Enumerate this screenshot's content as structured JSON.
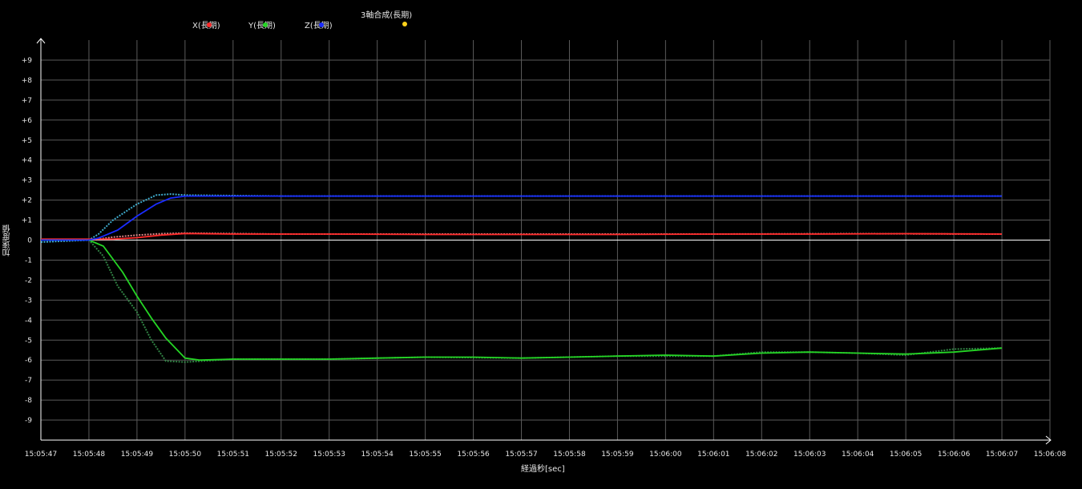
{
  "legend": {
    "x": "X(長期)",
    "y": "Y(長期)",
    "z": "Z(長期)",
    "total": "3軸合成(長期)"
  },
  "colors": {
    "background": "#000000",
    "grid": "#5a5a5a",
    "axis": "#ffffff",
    "x": "#ff2a2a",
    "y": "#25d525",
    "z": "#1a2cff",
    "total": "#ffd21a",
    "x_raw": "#ff9a9a",
    "y_raw": "#3a9a50",
    "z_raw": "#49c8ef"
  },
  "chart_data": {
    "type": "line",
    "xlabel": "経過秒[sec]",
    "ylabel": "加速度値",
    "xlim": [
      "15:05:47",
      "15:06:08"
    ],
    "ylim": [
      -10,
      10
    ],
    "grid": true,
    "legend_position": "top",
    "x_ticks": [
      "15:05:47",
      "15:05:48",
      "15:05:49",
      "15:05:50",
      "15:05:51",
      "15:05:52",
      "15:05:53",
      "15:05:54",
      "15:05:55",
      "15:05:56",
      "15:05:57",
      "15:05:58",
      "15:05:59",
      "15:06:00",
      "15:06:01",
      "15:06:02",
      "15:06:03",
      "15:06:04",
      "15:06:05",
      "15:06:06",
      "15:06:07",
      "15:06:08"
    ],
    "y_ticks": [
      "+9",
      "+8",
      "+7",
      "+6",
      "+5",
      "+4",
      "+3",
      "+2",
      "+1",
      "0",
      "-1",
      "-2",
      "-3",
      "-4",
      "-5",
      "-6",
      "-7",
      "-8",
      "-9"
    ],
    "series": [
      {
        "name": "X(長期)",
        "x": [
          "15:05:47",
          "15:05:48",
          "15:05:48.5",
          "15:05:49",
          "15:05:49.5",
          "15:05:50",
          "15:05:51",
          "15:05:53",
          "15:05:55",
          "15:05:57",
          "15:05:59",
          "15:06:01",
          "15:06:03",
          "15:06:05",
          "15:06:07"
        ],
        "values": [
          0.05,
          0.05,
          0.05,
          0.12,
          0.25,
          0.33,
          0.3,
          0.3,
          0.28,
          0.28,
          0.28,
          0.3,
          0.3,
          0.32,
          0.3
        ]
      },
      {
        "name": "Y(長期)",
        "x": [
          "15:05:47",
          "15:05:48",
          "15:05:48.3",
          "15:05:48.7",
          "15:05:49",
          "15:05:49.3",
          "15:05:49.6",
          "15:05:50",
          "15:05:50.3",
          "15:05:51",
          "15:05:52",
          "15:05:53",
          "15:05:54",
          "15:05:55",
          "15:05:56",
          "15:05:57",
          "15:05:58",
          "15:05:59",
          "15:06:00",
          "15:06:01",
          "15:06:02",
          "15:06:03",
          "15:06:04",
          "15:06:05",
          "15:06:06",
          "15:06:07"
        ],
        "values": [
          0.0,
          0.0,
          -0.3,
          -1.6,
          -2.8,
          -3.9,
          -4.9,
          -5.9,
          -6.0,
          -5.95,
          -5.95,
          -5.95,
          -5.9,
          -5.85,
          -5.85,
          -5.9,
          -5.85,
          -5.8,
          -5.75,
          -5.8,
          -5.65,
          -5.6,
          -5.65,
          -5.7,
          -5.6,
          -5.4
        ]
      },
      {
        "name": "Z(長期)",
        "x": [
          "15:05:47",
          "15:05:48",
          "15:05:48.2",
          "15:05:48.6",
          "15:05:49",
          "15:05:49.4",
          "15:05:49.7",
          "15:05:50",
          "15:05:52",
          "15:05:54",
          "15:05:56",
          "15:05:58",
          "15:06:00",
          "15:06:02",
          "15:06:04",
          "15:06:06",
          "15:06:07"
        ],
        "values": [
          0.0,
          0.0,
          0.1,
          0.5,
          1.2,
          1.8,
          2.1,
          2.2,
          2.2,
          2.2,
          2.2,
          2.2,
          2.2,
          2.2,
          2.2,
          2.2,
          2.2
        ]
      },
      {
        "name": "3軸合成(長期)",
        "x": [],
        "values": []
      }
    ],
    "raw_series": [
      {
        "x": [
          "15:05:47",
          "15:05:48",
          "15:05:48.2",
          "15:05:48.5",
          "15:05:49",
          "15:05:49.5",
          "15:05:50",
          "15:05:52",
          "15:05:55",
          "15:05:58",
          "15:06:01",
          "15:06:04",
          "15:06:07"
        ],
        "values": [
          0.0,
          0.0,
          0.05,
          0.15,
          0.25,
          0.32,
          0.35,
          0.3,
          0.3,
          0.3,
          0.3,
          0.32,
          0.3
        ]
      },
      {
        "x": [
          "15:05:47",
          "15:05:48",
          "15:05:48.3",
          "15:05:48.6",
          "15:05:49",
          "15:05:49.3",
          "15:05:49.6",
          "15:05:50",
          "15:05:51",
          "15:05:53",
          "15:05:55",
          "15:05:57",
          "15:05:59",
          "15:06:01",
          "15:06:02",
          "15:06:03",
          "15:06:04",
          "15:06:05",
          "15:06:06",
          "15:06:07"
        ],
        "values": [
          0.0,
          0.0,
          -0.8,
          -2.3,
          -3.6,
          -5.0,
          -6.05,
          -6.1,
          -5.95,
          -5.95,
          -5.85,
          -5.9,
          -5.8,
          -5.8,
          -5.6,
          -5.6,
          -5.65,
          -5.75,
          -5.45,
          -5.4
        ]
      },
      {
        "x": [
          "15:05:47",
          "15:05:48",
          "15:05:48.2",
          "15:05:48.5",
          "15:05:49",
          "15:05:49.4",
          "15:05:49.7",
          "15:05:50",
          "15:05:52",
          "15:05:55",
          "15:05:58",
          "15:06:01",
          "15:06:04",
          "15:06:07"
        ],
        "values": [
          -0.1,
          0.0,
          0.3,
          1.0,
          1.8,
          2.25,
          2.3,
          2.25,
          2.2,
          2.2,
          2.2,
          2.2,
          2.2,
          2.2
        ]
      }
    ]
  }
}
